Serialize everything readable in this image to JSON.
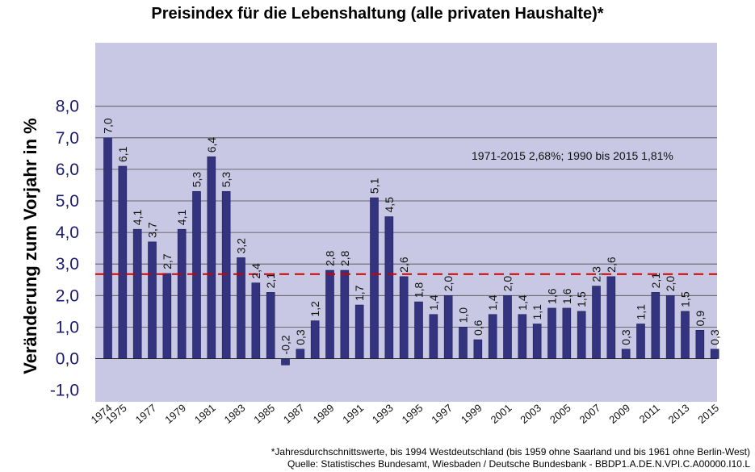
{
  "chart_data": {
    "type": "bar",
    "title": "Preisindex für die Lebenshaltung (alle privaten Haushalte)*",
    "xlabel": "",
    "ylabel": "Veränderung zum Vorjahr in %",
    "ylim": [
      -1.5,
      9.9
    ],
    "yticks": [
      -1.0,
      0.0,
      1.0,
      2.0,
      3.0,
      4.0,
      5.0,
      6.0,
      7.0,
      8.0
    ],
    "ytick_labels": [
      "-1,0",
      "0,0",
      "1,0",
      "2,0",
      "3,0",
      "4,0",
      "5,0",
      "6,0",
      "7,0",
      "8,0"
    ],
    "grid": true,
    "legend": "none",
    "categories": [
      "1974",
      "1975",
      "1976",
      "1977",
      "1978",
      "1979",
      "1980",
      "1981",
      "1982",
      "1983",
      "1984",
      "1985",
      "1986",
      "1987",
      "1988",
      "1989",
      "1990",
      "1991",
      "1992",
      "1993",
      "1994",
      "1995",
      "1996",
      "1997",
      "1998",
      "1999",
      "2000",
      "2001",
      "2002",
      "2003",
      "2004",
      "2005",
      "2006",
      "2007",
      "2008",
      "2009",
      "2010",
      "2011",
      "2012",
      "2013",
      "2014",
      "2015"
    ],
    "xtick_labels": [
      "1974",
      "1975",
      "",
      "1977",
      "",
      "1979",
      "",
      "1981",
      "",
      "1983",
      "",
      "1985",
      "",
      "1987",
      "",
      "1989",
      "",
      "1991",
      "",
      "1993",
      "",
      "1995",
      "",
      "1997",
      "",
      "1999",
      "",
      "2001",
      "",
      "2003",
      "",
      "2005",
      "",
      "2007",
      "",
      "2009",
      "",
      "2011",
      "",
      "2013",
      "",
      "2015"
    ],
    "values": [
      7.0,
      6.1,
      4.1,
      3.7,
      2.7,
      4.1,
      5.3,
      6.4,
      5.3,
      3.2,
      2.4,
      2.1,
      -0.2,
      0.3,
      1.2,
      2.8,
      2.8,
      1.7,
      5.1,
      4.5,
      2.6,
      1.8,
      1.4,
      2.0,
      1.0,
      0.6,
      1.4,
      2.0,
      1.4,
      1.1,
      1.6,
      1.6,
      1.5,
      2.3,
      2.6,
      0.3,
      1.1,
      2.1,
      2.0,
      1.5,
      0.9,
      0.3
    ],
    "value_labels": [
      "7,0",
      "6,1",
      "4,1",
      "3,7",
      "2,7",
      "4,1",
      "5,3",
      "6,4",
      "5,3",
      "3,2",
      "2,4",
      "2,1",
      "-0,2",
      "0,3",
      "1,2",
      "2,8",
      "2,8",
      "1,7",
      "5,1",
      "4,5",
      "2,6",
      "1,8",
      "1,4",
      "2,0",
      "1,0",
      "0,6",
      "1,4",
      "2,0",
      "1,4",
      "1,1",
      "1,6",
      "1,6",
      "1,5",
      "2,3",
      "2,6",
      "0,3",
      "1,1",
      "2,1",
      "2,0",
      "1,5",
      "0,9",
      "0,3"
    ],
    "reference_line": {
      "value": 2.68,
      "style": "dashed",
      "color": "#cc0000"
    },
    "annotation": "1971-2015 2,68%; 1990 bis 2015 1,81%",
    "colors": {
      "plot_background": "#c8c8e4",
      "bar": "#333380",
      "gridline": "#4a4a4a"
    }
  },
  "footnotes": [
    "*Jahresdurchschnittswerte, bis 1994 Westdeutschland (bis 1959 ohne Saarland und bis 1961 ohne Berlin-West)",
    "Quelle: Statistisches Bundesamt, Wiesbaden / Deutsche Bundesbank - BBDP1.A.DE.N.VPI.C.A00000.I10.L"
  ]
}
